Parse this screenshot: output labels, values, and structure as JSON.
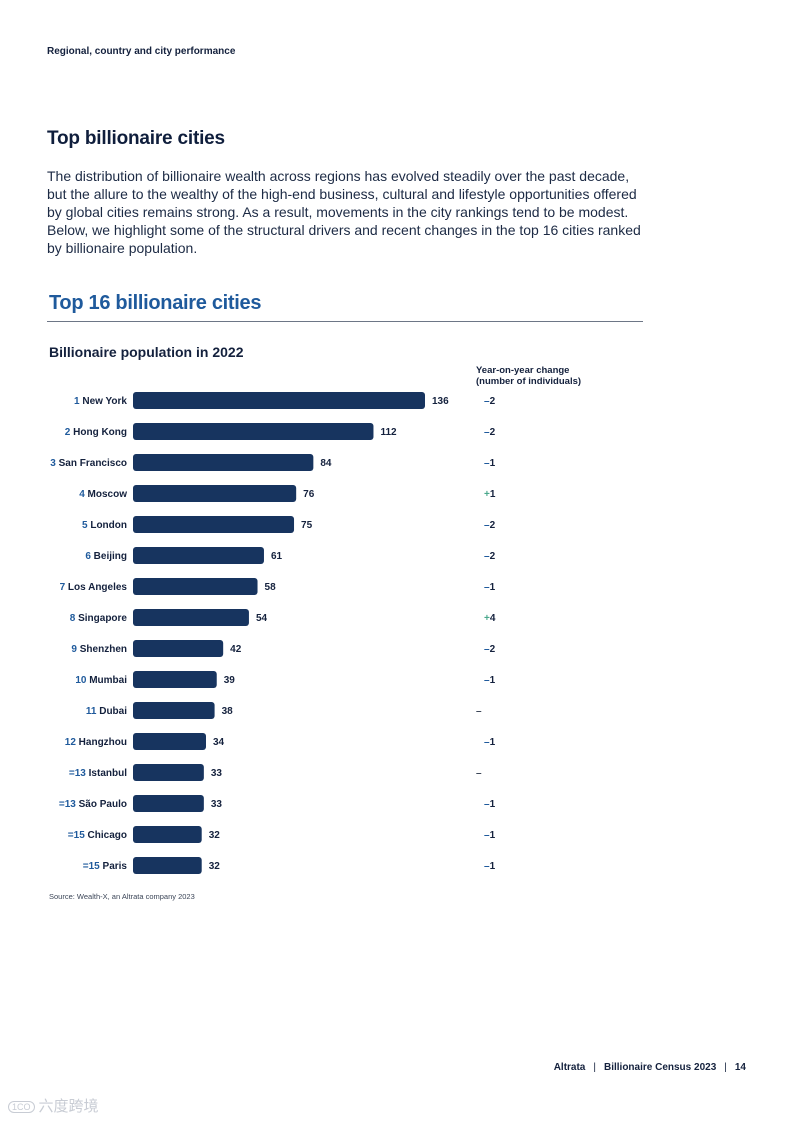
{
  "header": {
    "section_label": "Regional, country and city performance"
  },
  "article": {
    "heading": "Top billionaire cities",
    "intro": "The distribution of billionaire wealth across regions has evolved steadily over the past decade, but the allure to the wealthy of the high-end business, cultural and lifestyle opportunities offered by global cities remains strong. As a result, movements in the city rankings tend to be modest. Below, we highlight some of the structural drivers and recent changes in the top 16 cities ranked by billionaire population."
  },
  "chart_data": {
    "type": "bar",
    "orientation": "horizontal",
    "title": "Top 16 billionaire cities",
    "subtitle": "Billionaire population in 2022",
    "yoy_header": [
      "Year-on-year change",
      "(number of individuals)"
    ],
    "xlim": [
      0,
      136
    ],
    "ranks": [
      "1",
      "2",
      "3",
      "4",
      "5",
      "6",
      "7",
      "8",
      "9",
      "10",
      "11",
      "12",
      "=13",
      "=13",
      "=15",
      "=15"
    ],
    "categories": [
      "New York",
      "Hong Kong",
      "San Francisco",
      "Moscow",
      "London",
      "Beijing",
      "Los Angeles",
      "Singapore",
      "Shenzhen",
      "Mumbai",
      "Dubai",
      "Hangzhou",
      "Istanbul",
      "São Paulo",
      "Chicago",
      "Paris"
    ],
    "values": [
      136,
      112,
      84,
      76,
      75,
      61,
      58,
      54,
      42,
      39,
      38,
      34,
      33,
      33,
      32,
      32
    ],
    "yoy_sign": [
      "–",
      "–",
      "–",
      "+",
      "–",
      "–",
      "–",
      "+",
      "–",
      "–",
      "–",
      "–",
      "–",
      "–",
      "–",
      "–"
    ],
    "yoy_value": [
      "2",
      "2",
      "1",
      "1",
      "2",
      "2",
      "1",
      "4",
      "2",
      "1",
      "",
      "1",
      "",
      "1",
      "1",
      "1"
    ],
    "source": "Source: Wealth-X, an Altrata company 2023"
  },
  "colors": {
    "bar": "#17345f",
    "rank": "#1f5a9c",
    "title": "#1f5a9c",
    "negative": "#1f5a9c",
    "positive": "#4aa88c",
    "neutral": "#3c4658"
  },
  "footer": {
    "brand": "Altrata",
    "publication": "Billionaire Census 2023",
    "page": "14"
  },
  "watermark": {
    "badge": "1CO",
    "text": "六度跨境"
  }
}
